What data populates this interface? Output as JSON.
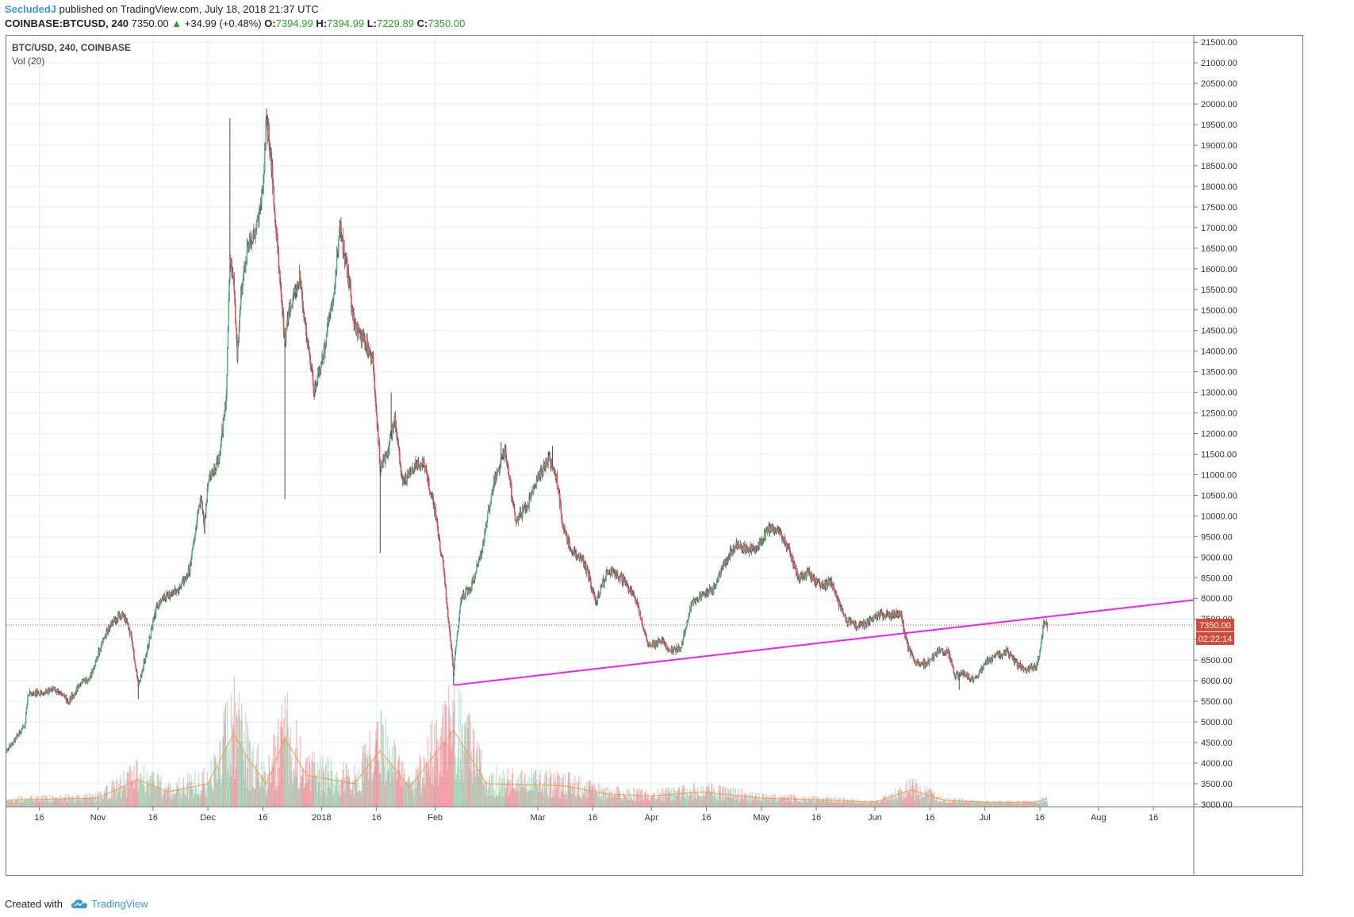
{
  "header": {
    "author": "SecludedJ",
    "published": "published on TradingView.com, July 18, 2018 21:37 UTC",
    "symbol": "COINBASE:BTCUSD, 240",
    "last": "7350.00",
    "change": "+34.99 (+0.48%)",
    "o_label": "O:",
    "o_value": "7394.99",
    "h_label": "H:",
    "h_value": "7394.99",
    "l_label": "L:",
    "l_value": "7229.89",
    "c_label": "C:",
    "c_value": "7350.00"
  },
  "legend": {
    "title": "BTC/USD, 240, COINBASE",
    "indicator": "Vol (20)"
  },
  "footer": {
    "created_with": "Created with",
    "brand": "TradingView"
  },
  "colors": {
    "up": "#53b987",
    "down": "#eb4d5c",
    "wick": "#4a4a4a",
    "trendline": "#ee22ee",
    "volume_ma": "#f59a4a",
    "price_line": "#d24a3a",
    "grid": "#e4eef5"
  },
  "chart_data": {
    "type": "candlestick",
    "title": "BTC/USD, 240, COINBASE",
    "interval": "240",
    "y_axis": {
      "ticks": [
        3000,
        3500,
        4000,
        4500,
        5000,
        5500,
        6000,
        6500,
        7000,
        7500,
        8000,
        8500,
        9000,
        9500,
        10000,
        10500,
        11000,
        11500,
        12000,
        12500,
        13000,
        13500,
        14000,
        14500,
        15000,
        15500,
        16000,
        16500,
        17000,
        17500,
        18000,
        18500,
        19000,
        19500,
        20000,
        20500,
        21000,
        21500
      ],
      "range": [
        2940,
        21620
      ],
      "position": "right"
    },
    "x_axis": {
      "range": [
        "2017-10-07",
        "2018-08-27"
      ],
      "ticks": [
        {
          "date": "2017-10-16",
          "label": "16"
        },
        {
          "date": "2017-11-01",
          "label": "Nov"
        },
        {
          "date": "2017-11-16",
          "label": "16"
        },
        {
          "date": "2017-12-01",
          "label": "Dec"
        },
        {
          "date": "2017-12-16",
          "label": "16"
        },
        {
          "date": "2018-01-01",
          "label": "2018"
        },
        {
          "date": "2018-01-16",
          "label": "16"
        },
        {
          "date": "2018-02-01",
          "label": "Feb"
        },
        {
          "date": "2018-03-01",
          "label": "Mar"
        },
        {
          "date": "2018-03-16",
          "label": "16"
        },
        {
          "date": "2018-04-01",
          "label": "Apr"
        },
        {
          "date": "2018-04-16",
          "label": "16"
        },
        {
          "date": "2018-05-01",
          "label": "May"
        },
        {
          "date": "2018-05-16",
          "label": "16"
        },
        {
          "date": "2018-06-01",
          "label": "Jun"
        },
        {
          "date": "2018-06-16",
          "label": "16"
        },
        {
          "date": "2018-07-01",
          "label": "Jul"
        },
        {
          "date": "2018-07-16",
          "label": "16"
        },
        {
          "date": "2018-08-01",
          "label": "Aug"
        },
        {
          "date": "2018-08-16",
          "label": "16"
        }
      ]
    },
    "price_path": [
      [
        "2017-10-07",
        4300
      ],
      [
        "2017-10-12",
        4900
      ],
      [
        "2017-10-13",
        5700
      ],
      [
        "2017-10-16",
        5700
      ],
      [
        "2017-10-20",
        5800
      ],
      [
        "2017-10-24",
        5500
      ],
      [
        "2017-10-27",
        5900
      ],
      [
        "2017-10-30",
        6100
      ],
      [
        "2017-11-02",
        6900
      ],
      [
        "2017-11-05",
        7450
      ],
      [
        "2017-11-08",
        7600
      ],
      [
        "2017-11-10",
        7100
      ],
      [
        "2017-11-12",
        5900
      ],
      [
        "2017-11-14",
        6600
      ],
      [
        "2017-11-17",
        7800
      ],
      [
        "2017-11-20",
        8100
      ],
      [
        "2017-11-23",
        8200
      ],
      [
        "2017-11-26",
        8700
      ],
      [
        "2017-11-29",
        10500
      ],
      [
        "2017-11-30",
        9700
      ],
      [
        "2017-12-01",
        10800
      ],
      [
        "2017-12-04",
        11400
      ],
      [
        "2017-12-06",
        12900
      ],
      [
        "2017-12-07",
        16300
      ],
      [
        "2017-12-08",
        15700
      ],
      [
        "2017-12-09",
        13800
      ],
      [
        "2017-12-10",
        15400
      ],
      [
        "2017-12-12",
        16600
      ],
      [
        "2017-12-14",
        16800
      ],
      [
        "2017-12-16",
        18000
      ],
      [
        "2017-12-17",
        19700
      ],
      [
        "2017-12-18",
        18900
      ],
      [
        "2017-12-20",
        16500
      ],
      [
        "2017-12-22",
        14200
      ],
      [
        "2017-12-23",
        15000
      ],
      [
        "2017-12-26",
        15800
      ],
      [
        "2017-12-28",
        14300
      ],
      [
        "2017-12-30",
        13000
      ],
      [
        "2018-01-01",
        13700
      ],
      [
        "2018-01-04",
        15200
      ],
      [
        "2018-01-06",
        17000
      ],
      [
        "2018-01-08",
        16000
      ],
      [
        "2018-01-10",
        14600
      ],
      [
        "2018-01-13",
        14200
      ],
      [
        "2018-01-15",
        13800
      ],
      [
        "2018-01-17",
        11200
      ],
      [
        "2018-01-19",
        11500
      ],
      [
        "2018-01-21",
        12400
      ],
      [
        "2018-01-23",
        10800
      ],
      [
        "2018-01-26",
        11200
      ],
      [
        "2018-01-29",
        11300
      ],
      [
        "2018-02-01",
        10100
      ],
      [
        "2018-02-03",
        8900
      ],
      [
        "2018-02-05",
        7200
      ],
      [
        "2018-02-06",
        6200
      ],
      [
        "2018-02-08",
        8000
      ],
      [
        "2018-02-11",
        8300
      ],
      [
        "2018-02-14",
        9300
      ],
      [
        "2018-02-17",
        10800
      ],
      [
        "2018-02-20",
        11600
      ],
      [
        "2018-02-23",
        9900
      ],
      [
        "2018-02-26",
        10200
      ],
      [
        "2018-03-01",
        10900
      ],
      [
        "2018-03-04",
        11400
      ],
      [
        "2018-03-06",
        11000
      ],
      [
        "2018-03-08",
        9700
      ],
      [
        "2018-03-10",
        9200
      ],
      [
        "2018-03-13",
        9000
      ],
      [
        "2018-03-15",
        8500
      ],
      [
        "2018-03-17",
        7900
      ],
      [
        "2018-03-20",
        8700
      ],
      [
        "2018-03-22",
        8600
      ],
      [
        "2018-03-25",
        8400
      ],
      [
        "2018-03-28",
        7900
      ],
      [
        "2018-03-31",
        6900
      ],
      [
        "2018-04-02",
        6900
      ],
      [
        "2018-04-04",
        7000
      ],
      [
        "2018-04-06",
        6700
      ],
      [
        "2018-04-09",
        6800
      ],
      [
        "2018-04-12",
        7900
      ],
      [
        "2018-04-15",
        8100
      ],
      [
        "2018-04-18",
        8200
      ],
      [
        "2018-04-21",
        8900
      ],
      [
        "2018-04-24",
        9300
      ],
      [
        "2018-04-27",
        9200
      ],
      [
        "2018-04-30",
        9200
      ],
      [
        "2018-05-03",
        9700
      ],
      [
        "2018-05-06",
        9600
      ],
      [
        "2018-05-09",
        9100
      ],
      [
        "2018-05-11",
        8500
      ],
      [
        "2018-05-14",
        8600
      ],
      [
        "2018-05-17",
        8300
      ],
      [
        "2018-05-20",
        8400
      ],
      [
        "2018-05-22",
        7900
      ],
      [
        "2018-05-24",
        7500
      ],
      [
        "2018-05-27",
        7300
      ],
      [
        "2018-05-30",
        7400
      ],
      [
        "2018-06-02",
        7600
      ],
      [
        "2018-06-05",
        7600
      ],
      [
        "2018-06-08",
        7650
      ],
      [
        "2018-06-10",
        6800
      ],
      [
        "2018-06-12",
        6500
      ],
      [
        "2018-06-15",
        6400
      ],
      [
        "2018-06-18",
        6700
      ],
      [
        "2018-06-21",
        6700
      ],
      [
        "2018-06-23",
        6100
      ],
      [
        "2018-06-25",
        6200
      ],
      [
        "2018-06-28",
        6000
      ],
      [
        "2018-07-01",
        6400
      ],
      [
        "2018-07-04",
        6600
      ],
      [
        "2018-07-07",
        6700
      ],
      [
        "2018-07-10",
        6400
      ],
      [
        "2018-07-12",
        6250
      ],
      [
        "2018-07-15",
        6350
      ],
      [
        "2018-07-16",
        6700
      ],
      [
        "2018-07-17",
        7400
      ],
      [
        "2018-07-18",
        7350
      ]
    ],
    "spikes_high": [
      [
        "2017-12-07",
        19650
      ],
      [
        "2017-12-17",
        19890
      ],
      [
        "2018-01-06",
        17200
      ],
      [
        "2018-01-20",
        13000
      ],
      [
        "2018-02-19",
        11800
      ],
      [
        "2018-03-05",
        11700
      ]
    ],
    "spikes_low": [
      [
        "2017-11-12",
        5550
      ],
      [
        "2017-12-22",
        10400
      ],
      [
        "2018-01-17",
        9100
      ],
      [
        "2018-02-06",
        5900
      ],
      [
        "2018-06-24",
        5780
      ]
    ],
    "volume_ma_path": [
      [
        "2017-10-07",
        3100
      ],
      [
        "2017-11-01",
        3150
      ],
      [
        "2017-11-12",
        3600
      ],
      [
        "2017-11-20",
        3300
      ],
      [
        "2017-12-01",
        3500
      ],
      [
        "2017-12-08",
        4700
      ],
      [
        "2017-12-12",
        4100
      ],
      [
        "2017-12-17",
        3500
      ],
      [
        "2017-12-22",
        4600
      ],
      [
        "2017-12-28",
        3700
      ],
      [
        "2018-01-10",
        3500
      ],
      [
        "2018-01-17",
        4300
      ],
      [
        "2018-01-25",
        3400
      ],
      [
        "2018-02-06",
        4800
      ],
      [
        "2018-02-15",
        3500
      ],
      [
        "2018-03-08",
        3450
      ],
      [
        "2018-03-20",
        3250
      ],
      [
        "2018-04-01",
        3200
      ],
      [
        "2018-04-15",
        3300
      ],
      [
        "2018-05-01",
        3150
      ],
      [
        "2018-05-20",
        3100
      ],
      [
        "2018-06-01",
        3050
      ],
      [
        "2018-06-11",
        3350
      ],
      [
        "2018-06-20",
        3100
      ],
      [
        "2018-07-01",
        3050
      ],
      [
        "2018-07-15",
        3050
      ],
      [
        "2018-07-18",
        3150
      ]
    ],
    "trendline": {
      "from": [
        "2018-02-06",
        5890
      ],
      "to": [
        "2018-08-27",
        7960
      ]
    },
    "last_price": {
      "value": "7350.00",
      "countdown": "02:22:14"
    },
    "grid": true
  }
}
